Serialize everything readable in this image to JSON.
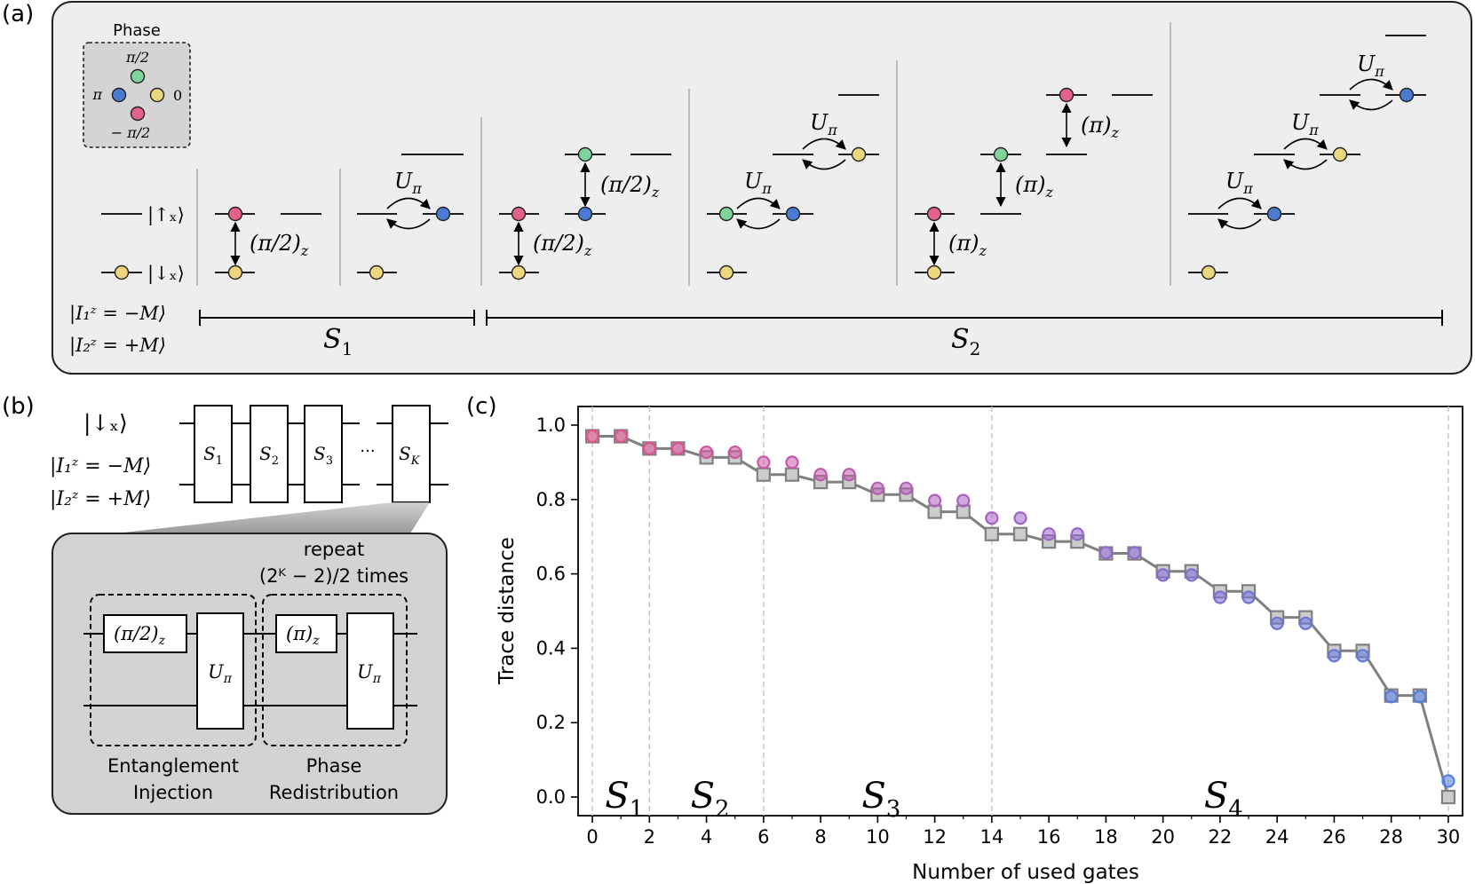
{
  "panel_labels": {
    "a": "(a)",
    "b": "(b)",
    "c": "(c)"
  },
  "panel_a": {
    "phase_legend": {
      "title": "Phase",
      "top": "π/2",
      "left": "π",
      "right": "0",
      "bottom": "− π/2"
    },
    "colors": {
      "zero": "#ecd77e",
      "pi_half": "#7fd49b",
      "pi": "#4a7bd1",
      "minus_pi_half": "#e4628a",
      "panel_bg": "#eeeeee"
    },
    "state_labels": {
      "up": "|↑ₓ⟩",
      "down": "|↓ₓ⟩",
      "nuc1": "|I₁ᶻ = −M⟩",
      "nuc2": "|I₂ᶻ = +M⟩"
    },
    "gate_labels": {
      "pi_half_z": "(π/2)",
      "pi_z": "(π)",
      "z_sub": "z",
      "u": "U",
      "u_sub": "π"
    },
    "stage_labels": [
      {
        "main": "S",
        "sub": "1"
      },
      {
        "main": "S",
        "sub": "2"
      }
    ]
  },
  "panel_b": {
    "state_labels": {
      "down": "|↓ₓ⟩",
      "nuc1": "|I₁ᶻ = −M⟩",
      "nuc2": "|I₂ᶻ = +M⟩"
    },
    "blocks": [
      {
        "main": "S",
        "sub": "1"
      },
      {
        "main": "S",
        "sub": "2"
      },
      {
        "main": "S",
        "sub": "3"
      },
      {
        "main": "S",
        "sub": "K"
      }
    ],
    "ellipsis": "···",
    "repeat_line1": "repeat",
    "repeat_line2": "(2ᴷ − 2)/2 times",
    "gate_pi_half": "(π/2)",
    "gate_pi": "(π)",
    "gate_z_sub": "z",
    "gate_u": "U",
    "gate_u_sub": "π",
    "group1_line1": "Entanglement",
    "group1_line2": "Injection",
    "group2_line1": "Phase",
    "group2_line2": "Redistribution"
  },
  "chart_data": {
    "type": "line",
    "xlabel": "Number of used gates",
    "ylabel": "Trace distance",
    "xlim": [
      -0.5,
      30.5
    ],
    "ylim": [
      -0.05,
      1.05
    ],
    "x_ticks": [
      0,
      2,
      4,
      6,
      8,
      10,
      12,
      14,
      16,
      18,
      20,
      22,
      24,
      26,
      28,
      30
    ],
    "y_ticks": [
      0.0,
      0.2,
      0.4,
      0.6,
      0.8,
      1.0
    ],
    "vlines": [
      0,
      2,
      6,
      14,
      30
    ],
    "stage_labels": [
      {
        "main": "S",
        "sub": "1",
        "x": 1
      },
      {
        "main": "S",
        "sub": "2",
        "x": 4
      },
      {
        "main": "S",
        "sub": "3",
        "x": 10
      },
      {
        "main": "S",
        "sub": "4",
        "x": 22
      }
    ],
    "series": [
      {
        "marker": "square",
        "color": "#808080",
        "x": [
          0,
          1,
          2,
          3,
          4,
          5,
          6,
          7,
          8,
          9,
          10,
          11,
          12,
          13,
          14,
          15,
          16,
          17,
          18,
          19,
          20,
          21,
          22,
          23,
          24,
          25,
          26,
          27,
          28,
          29,
          30
        ],
        "values": [
          0.97,
          0.97,
          0.937,
          0.937,
          0.913,
          0.913,
          0.867,
          0.867,
          0.847,
          0.847,
          0.813,
          0.813,
          0.767,
          0.767,
          0.707,
          0.707,
          0.687,
          0.687,
          0.655,
          0.655,
          0.607,
          0.607,
          0.553,
          0.553,
          0.483,
          0.483,
          0.393,
          0.393,
          0.273,
          0.273,
          0.0
        ]
      },
      {
        "marker": "circle",
        "color_start": "#e4508a",
        "color_end": "#4f7fe0",
        "x": [
          0,
          1,
          2,
          3,
          4,
          5,
          6,
          7,
          8,
          9,
          10,
          11,
          12,
          13,
          14,
          15,
          16,
          17,
          18,
          19,
          20,
          21,
          22,
          23,
          24,
          25,
          26,
          27,
          28,
          29,
          30
        ],
        "values": [
          0.97,
          0.97,
          0.937,
          0.937,
          0.927,
          0.927,
          0.9,
          0.9,
          0.867,
          0.867,
          0.83,
          0.83,
          0.797,
          0.797,
          0.75,
          0.75,
          0.707,
          0.707,
          0.657,
          0.657,
          0.597,
          0.597,
          0.537,
          0.537,
          0.467,
          0.467,
          0.38,
          0.38,
          0.27,
          0.27,
          0.043
        ]
      }
    ]
  }
}
